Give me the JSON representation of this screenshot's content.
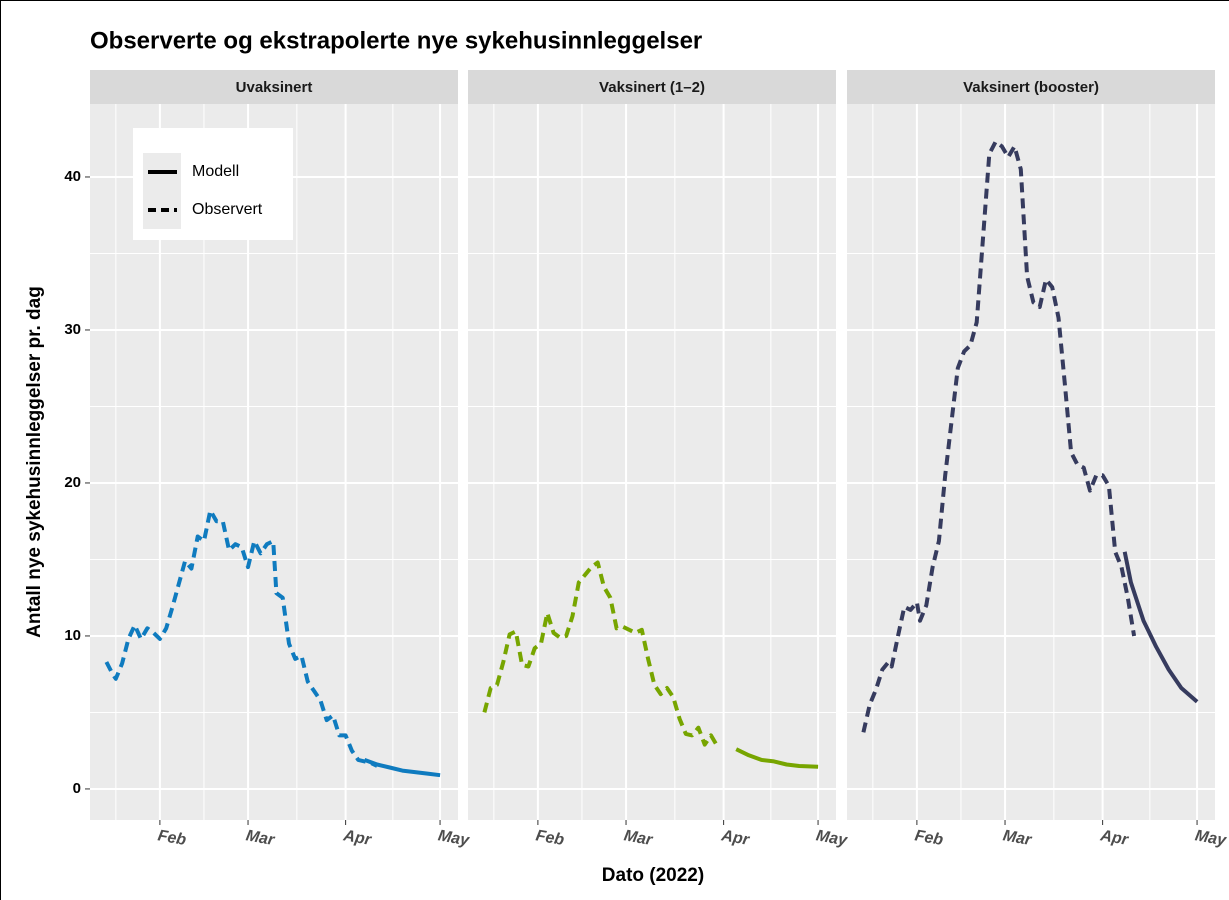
{
  "title": "Observerte og ekstrapolerte nye sykehusinnleggelser",
  "xlabel": "Dato (2022)",
  "ylabel": "Antall nye sykehusinnleggelser pr. dag",
  "chart_data": [
    {
      "type": "line",
      "title": "Uvaksinert",
      "xlim": [
        9.8,
        126.7
      ],
      "ylim": [
        -2.03,
        44.77
      ],
      "xticks": [
        {
          "value": 32,
          "label": "Feb"
        },
        {
          "value": 60,
          "label": "Mar"
        },
        {
          "value": 91,
          "label": "Apr"
        },
        {
          "value": 121,
          "label": "May"
        }
      ],
      "yticks": [
        0,
        10,
        20,
        30,
        40
      ],
      "series": [
        {
          "name": "Modell",
          "color": "#0f7bbf",
          "dash": false,
          "x": [
            97,
            101,
            105,
            109,
            113,
            117,
            121
          ],
          "values": [
            1.9,
            1.6,
            1.4,
            1.2,
            1.1,
            1.0,
            0.9
          ]
        },
        {
          "name": "Observert",
          "color": "#0f7bbf",
          "dash": true,
          "x": [
            15,
            17,
            18,
            20,
            22,
            24,
            26,
            28,
            30,
            32,
            34,
            36,
            38,
            40,
            42,
            44,
            46,
            48,
            50,
            52,
            54,
            56,
            58,
            60,
            62,
            64,
            66,
            68,
            69,
            71,
            73,
            75,
            77,
            79,
            81,
            83,
            85,
            87,
            89,
            91,
            93,
            95,
            97,
            99,
            101
          ],
          "values": [
            8.3,
            7.5,
            7.2,
            8.2,
            9.8,
            10.7,
            9.8,
            10.5,
            10.2,
            9.8,
            10.5,
            11.9,
            13.4,
            14.9,
            14.4,
            16.5,
            16.2,
            18.2,
            17.5,
            17.5,
            15.6,
            16.0,
            15.8,
            14.5,
            16.2,
            15.4,
            16.0,
            16.2,
            12.8,
            12.5,
            9.5,
            8.5,
            8.7,
            7.0,
            6.4,
            5.8,
            4.5,
            4.8,
            3.5,
            3.5,
            2.5,
            1.9,
            1.8,
            1.7,
            1.5
          ]
        }
      ]
    },
    {
      "type": "line",
      "title": "Vaksinert (1–2)",
      "xlim": [
        9.8,
        126.7
      ],
      "ylim": [
        -2.03,
        44.77
      ],
      "xticks": [
        {
          "value": 32,
          "label": "Feb"
        },
        {
          "value": 60,
          "label": "Mar"
        },
        {
          "value": 91,
          "label": "Apr"
        },
        {
          "value": 121,
          "label": "May"
        }
      ],
      "yticks": [
        0,
        10,
        20,
        30,
        40
      ],
      "series": [
        {
          "name": "Modell",
          "color": "#77a500",
          "dash": false,
          "x": [
            95,
            99,
            103,
            107,
            111,
            115,
            121
          ],
          "values": [
            2.6,
            2.2,
            1.9,
            1.8,
            1.6,
            1.5,
            1.45
          ]
        },
        {
          "name": "Observert",
          "color": "#77a500",
          "dash": true,
          "x": [
            15,
            17,
            19,
            21,
            23,
            25,
            27,
            29,
            31,
            33,
            35,
            37,
            39,
            41,
            43,
            45,
            47,
            49,
            51,
            53,
            55,
            57,
            59,
            61,
            63,
            65,
            67,
            69,
            71,
            73,
            75,
            77,
            79,
            81,
            83,
            85,
            87,
            89
          ],
          "values": [
            5.0,
            6.6,
            6.8,
            8.3,
            10.1,
            10.3,
            8.1,
            8.0,
            9.2,
            9.5,
            11.5,
            10.2,
            9.9,
            10.0,
            11.3,
            13.5,
            14.0,
            14.5,
            14.8,
            13.2,
            12.5,
            10.5,
            10.6,
            10.4,
            10.2,
            10.4,
            8.5,
            6.8,
            6.2,
            6.6,
            6.0,
            4.6,
            3.6,
            3.5,
            4.0,
            2.9,
            3.5,
            2.8
          ]
        }
      ]
    },
    {
      "type": "line",
      "title": "Vaksinert (booster)",
      "xlim": [
        9.8,
        126.7
      ],
      "ylim": [
        -2.03,
        44.77
      ],
      "xticks": [
        {
          "value": 32,
          "label": "Feb"
        },
        {
          "value": 60,
          "label": "Mar"
        },
        {
          "value": 91,
          "label": "Apr"
        },
        {
          "value": 121,
          "label": "May"
        }
      ],
      "yticks": [
        0,
        10,
        20,
        30,
        40
      ],
      "series": [
        {
          "name": "Modell",
          "color": "#363b5e",
          "dash": false,
          "x": [
            98,
            100,
            104,
            108,
            112,
            116,
            121
          ],
          "values": [
            15.5,
            13.5,
            11.0,
            9.3,
            7.8,
            6.6,
            5.7
          ]
        },
        {
          "name": "Observert",
          "color": "#363b5e",
          "dash": true,
          "x": [
            15,
            17,
            19,
            21,
            23,
            24,
            26,
            28,
            30,
            32,
            33,
            35,
            37,
            39,
            41,
            43,
            45,
            47,
            49,
            51,
            53,
            55,
            57,
            59,
            61,
            63,
            65,
            67,
            69,
            71,
            73,
            75,
            77,
            79,
            81,
            83,
            85,
            87,
            89,
            91,
            93,
            95,
            97,
            99,
            101
          ],
          "values": [
            3.7,
            5.5,
            6.5,
            7.8,
            8.3,
            8.0,
            10.0,
            11.9,
            11.7,
            12.2,
            11.0,
            12.0,
            14.5,
            16.2,
            20.5,
            24.0,
            27.5,
            28.6,
            29.0,
            30.5,
            36.0,
            41.5,
            42.3,
            42.0,
            41.3,
            42.0,
            40.5,
            33.5,
            31.8,
            31.5,
            33.3,
            32.8,
            30.8,
            26.5,
            22.0,
            21.2,
            21.0,
            19.5,
            20.5,
            20.5,
            19.8,
            15.5,
            14.5,
            12.5,
            10.0
          ]
        }
      ]
    }
  ]
}
